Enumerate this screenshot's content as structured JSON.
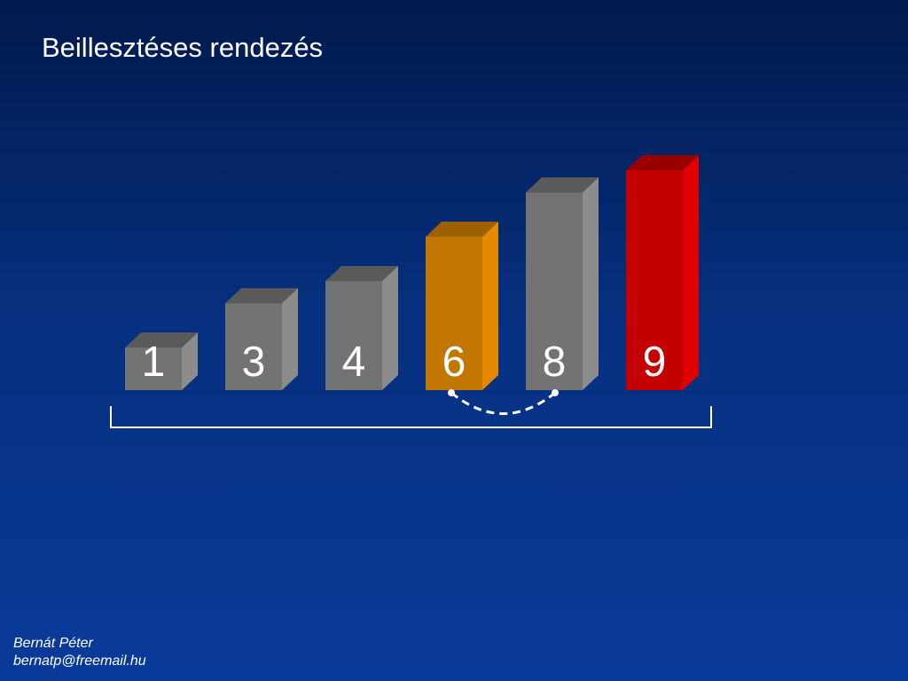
{
  "slide": {
    "title": "Beillesztéses rendezés"
  },
  "bars": [
    {
      "label": "1",
      "value": 1,
      "state": "sorted"
    },
    {
      "label": "3",
      "value": 3,
      "state": "sorted"
    },
    {
      "label": "4",
      "value": 4,
      "state": "sorted"
    },
    {
      "label": "6",
      "value": 6,
      "state": "swap"
    },
    {
      "label": "8",
      "value": 8,
      "state": "sorted"
    },
    {
      "label": "9",
      "value": 9,
      "state": "current"
    }
  ],
  "swap_pair": [
    3,
    4
  ],
  "colors": {
    "sorted": {
      "front": "#737373",
      "top": "#5a5a5a",
      "side": "#8c8c8c"
    },
    "swap": {
      "front": "#c27800",
      "top": "#9e6100",
      "side": "#e58a00"
    },
    "current": {
      "front": "#c40000",
      "top": "#9a0000",
      "side": "#e00000"
    },
    "bracket": "#ffffff",
    "arrow": "#ffffff"
  },
  "footer": {
    "author": "Bernát Péter",
    "email": "bernatp@freemail.hu"
  }
}
